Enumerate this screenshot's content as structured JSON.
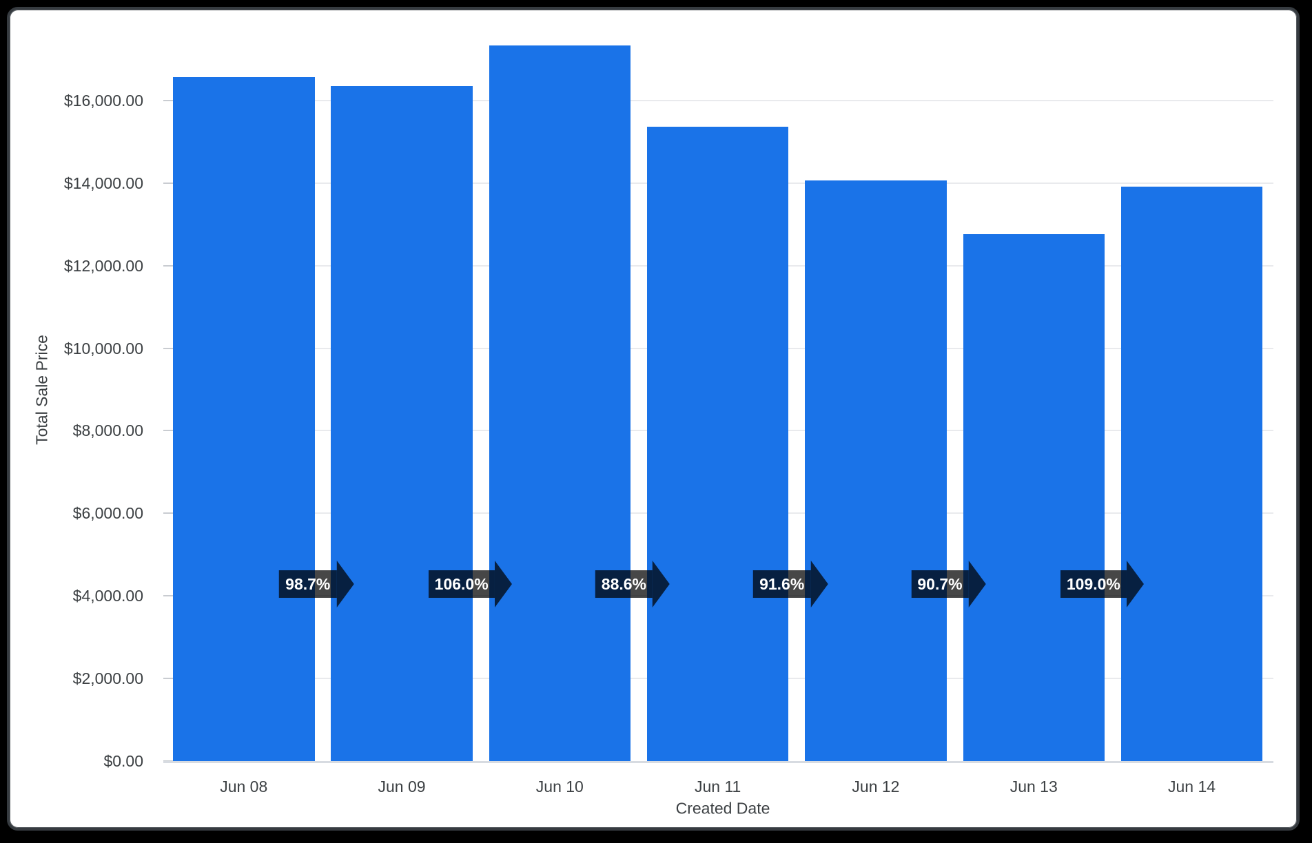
{
  "page": {
    "background_color": "#000000",
    "card_border_color": "#363b40",
    "card_background_color": "#ffffff"
  },
  "chart_data": {
    "type": "bar",
    "title": "",
    "xlabel": "Created Date",
    "ylabel": "Total Sale Price",
    "series_name": "Total Sale Price",
    "categories": [
      "Jun 08",
      "Jun 09",
      "Jun 10",
      "Jun 11",
      "Jun 12",
      "Jun 13",
      "Jun 14"
    ],
    "values": [
      16570,
      16355,
      17335,
      15360,
      14070,
      12760,
      13910
    ],
    "period_over_period_labels": [
      "98.7%",
      "106.0%",
      "88.6%",
      "91.6%",
      "90.7%",
      "109.0%"
    ],
    "y_tick_labels": [
      "$0.00",
      "$2,000.00",
      "$4,000.00",
      "$6,000.00",
      "$8,000.00",
      "$10,000.00",
      "$12,000.00",
      "$14,000.00",
      "$16,000.00"
    ],
    "y_tick_values": [
      0,
      2000,
      4000,
      6000,
      8000,
      10000,
      12000,
      14000,
      16000
    ],
    "ylim": [
      0,
      18000
    ],
    "grid": true,
    "legend": "none",
    "bar_color": "#1a73e8",
    "gridline_color": "#e9eaed",
    "axis_text_color": "#3c4043",
    "badge_background": "rgba(0,0,0,0.72)",
    "badge_text_color": "#ffffff",
    "badge_shape": "right-arrow"
  }
}
